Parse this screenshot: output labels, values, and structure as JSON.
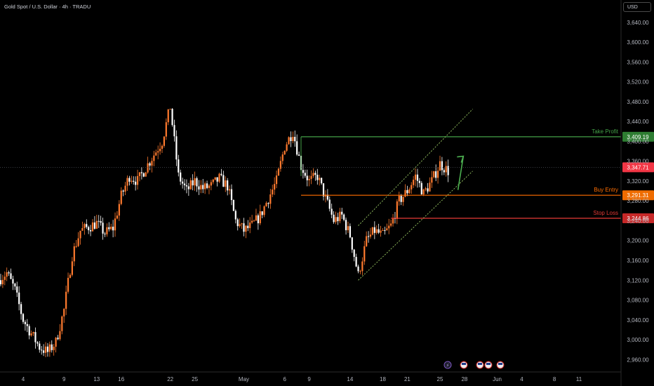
{
  "header": {
    "title": "Gold Spot / U.S. Dollar · 4h · TRADU",
    "currency": "USD"
  },
  "colors": {
    "up": "#ff7a2e",
    "down": "#ffffff",
    "tp": "#43a047",
    "entry": "#ff6d00",
    "sl": "#e53935",
    "last": "#f23645",
    "channel": "#9ccc65",
    "arrow": "#4caf50"
  },
  "chart_data": {
    "type": "candlestick",
    "title": "Gold Spot / U.S. Dollar · 4h · TRADU",
    "xlabel": "",
    "ylabel": "",
    "ylim": [
      2935,
      3685
    ],
    "y_ticks": [
      "3,640.00",
      "3,600.00",
      "3,560.00",
      "3,520.00",
      "3,480.00",
      "3,440.00",
      "3,400.00",
      "3,360.00",
      "3,320.00",
      "3,280.00",
      "3,240.00",
      "3,200.00",
      "3,160.00",
      "3,120.00",
      "3,080.00",
      "3,040.00",
      "3,000.00",
      "2,960.00"
    ],
    "y_tick_values": [
      3640,
      3600,
      3560,
      3520,
      3480,
      3440,
      3400,
      3360,
      3320,
      3280,
      3240,
      3200,
      3160,
      3120,
      3080,
      3040,
      3000,
      2960
    ],
    "x_ticks": [
      {
        "label": "4",
        "date": "2025-04-04"
      },
      {
        "label": "9",
        "date": "2025-04-09"
      },
      {
        "label": "13",
        "date": "2025-04-13"
      },
      {
        "label": "16",
        "date": "2025-04-16"
      },
      {
        "label": "22",
        "date": "2025-04-22"
      },
      {
        "label": "25",
        "date": "2025-04-25"
      },
      {
        "label": "May",
        "date": "2025-05-01"
      },
      {
        "label": "6",
        "date": "2025-05-06"
      },
      {
        "label": "9",
        "date": "2025-05-09"
      },
      {
        "label": "14",
        "date": "2025-05-14"
      },
      {
        "label": "18",
        "date": "2025-05-18"
      },
      {
        "label": "21",
        "date": "2025-05-21"
      },
      {
        "label": "25",
        "date": "2025-05-25"
      },
      {
        "label": "28",
        "date": "2025-05-28"
      },
      {
        "label": "Jun",
        "date": "2025-06-01"
      },
      {
        "label": "4",
        "date": "2025-06-04"
      },
      {
        "label": "8",
        "date": "2025-06-08"
      },
      {
        "label": "11",
        "date": "2025-06-11"
      }
    ],
    "price_path_close": [
      [
        "2025-04-01",
        3120
      ],
      [
        "2025-04-02",
        3135
      ],
      [
        "2025-04-03",
        3100
      ],
      [
        "2025-04-04",
        3040
      ],
      [
        "2025-04-06",
        2985
      ],
      [
        "2025-04-07",
        2975
      ],
      [
        "2025-04-08",
        2995
      ],
      [
        "2025-04-09",
        3060
      ],
      [
        "2025-04-10",
        3170
      ],
      [
        "2025-04-11",
        3220
      ],
      [
        "2025-04-13",
        3235
      ],
      [
        "2025-04-14",
        3215
      ],
      [
        "2025-04-15",
        3225
      ],
      [
        "2025-04-16",
        3290
      ],
      [
        "2025-04-17",
        3330
      ],
      [
        "2025-04-18",
        3320
      ],
      [
        "2025-04-21",
        3400
      ],
      [
        "2025-04-22",
        3470
      ],
      [
        "2025-04-23",
        3330
      ],
      [
        "2025-04-24",
        3300
      ],
      [
        "2025-04-25",
        3320
      ],
      [
        "2025-04-26",
        3305
      ],
      [
        "2025-04-27",
        3310
      ],
      [
        "2025-04-28",
        3325
      ],
      [
        "2025-04-29",
        3310
      ],
      [
        "2025-04-30",
        3240
      ],
      [
        "2025-05-01",
        3220
      ],
      [
        "2025-05-02",
        3230
      ],
      [
        "2025-05-03",
        3250
      ],
      [
        "2025-05-05",
        3320
      ],
      [
        "2025-05-06",
        3390
      ],
      [
        "2025-05-07",
        3420
      ],
      [
        "2025-05-08",
        3350
      ],
      [
        "2025-05-09",
        3320
      ],
      [
        "2025-05-10",
        3330
      ],
      [
        "2025-05-12",
        3240
      ],
      [
        "2025-05-13",
        3250
      ],
      [
        "2025-05-14",
        3210
      ],
      [
        "2025-05-15",
        3130
      ],
      [
        "2025-05-16",
        3200
      ],
      [
        "2025-05-17",
        3220
      ],
      [
        "2025-05-18",
        3210
      ],
      [
        "2025-05-19",
        3230
      ],
      [
        "2025-05-20",
        3280
      ],
      [
        "2025-05-21",
        3300
      ],
      [
        "2025-05-22",
        3330
      ],
      [
        "2025-05-23",
        3295
      ],
      [
        "2025-05-24",
        3320
      ],
      [
        "2025-05-25",
        3355
      ],
      [
        "2025-05-26",
        3340
      ]
    ],
    "levels": [
      {
        "name": "Take Profit",
        "value": 3409.19,
        "label": "3,409.19"
      },
      {
        "name": "Buy Entry",
        "value": 3291.31,
        "label": "3,291.31"
      },
      {
        "name": "Stop Loss",
        "value": 3244.86,
        "label": "3,244.86"
      }
    ],
    "last_price": {
      "value": 3347.71,
      "label": "3,347.71"
    },
    "channel": {
      "upper": [
        [
          "2025-05-15",
          3230
        ],
        [
          "2025-05-29",
          3465
        ]
      ],
      "lower": [
        [
          "2025-05-15",
          3120
        ],
        [
          "2025-05-29",
          3340
        ]
      ]
    },
    "arrow": {
      "from": [
        "2025-05-26",
        3295
      ],
      "to": [
        "2025-05-27",
        3370
      ]
    },
    "event_markers": [
      "⚡",
      "event",
      "event",
      "event",
      "event"
    ],
    "grid": false,
    "legend": "none"
  }
}
